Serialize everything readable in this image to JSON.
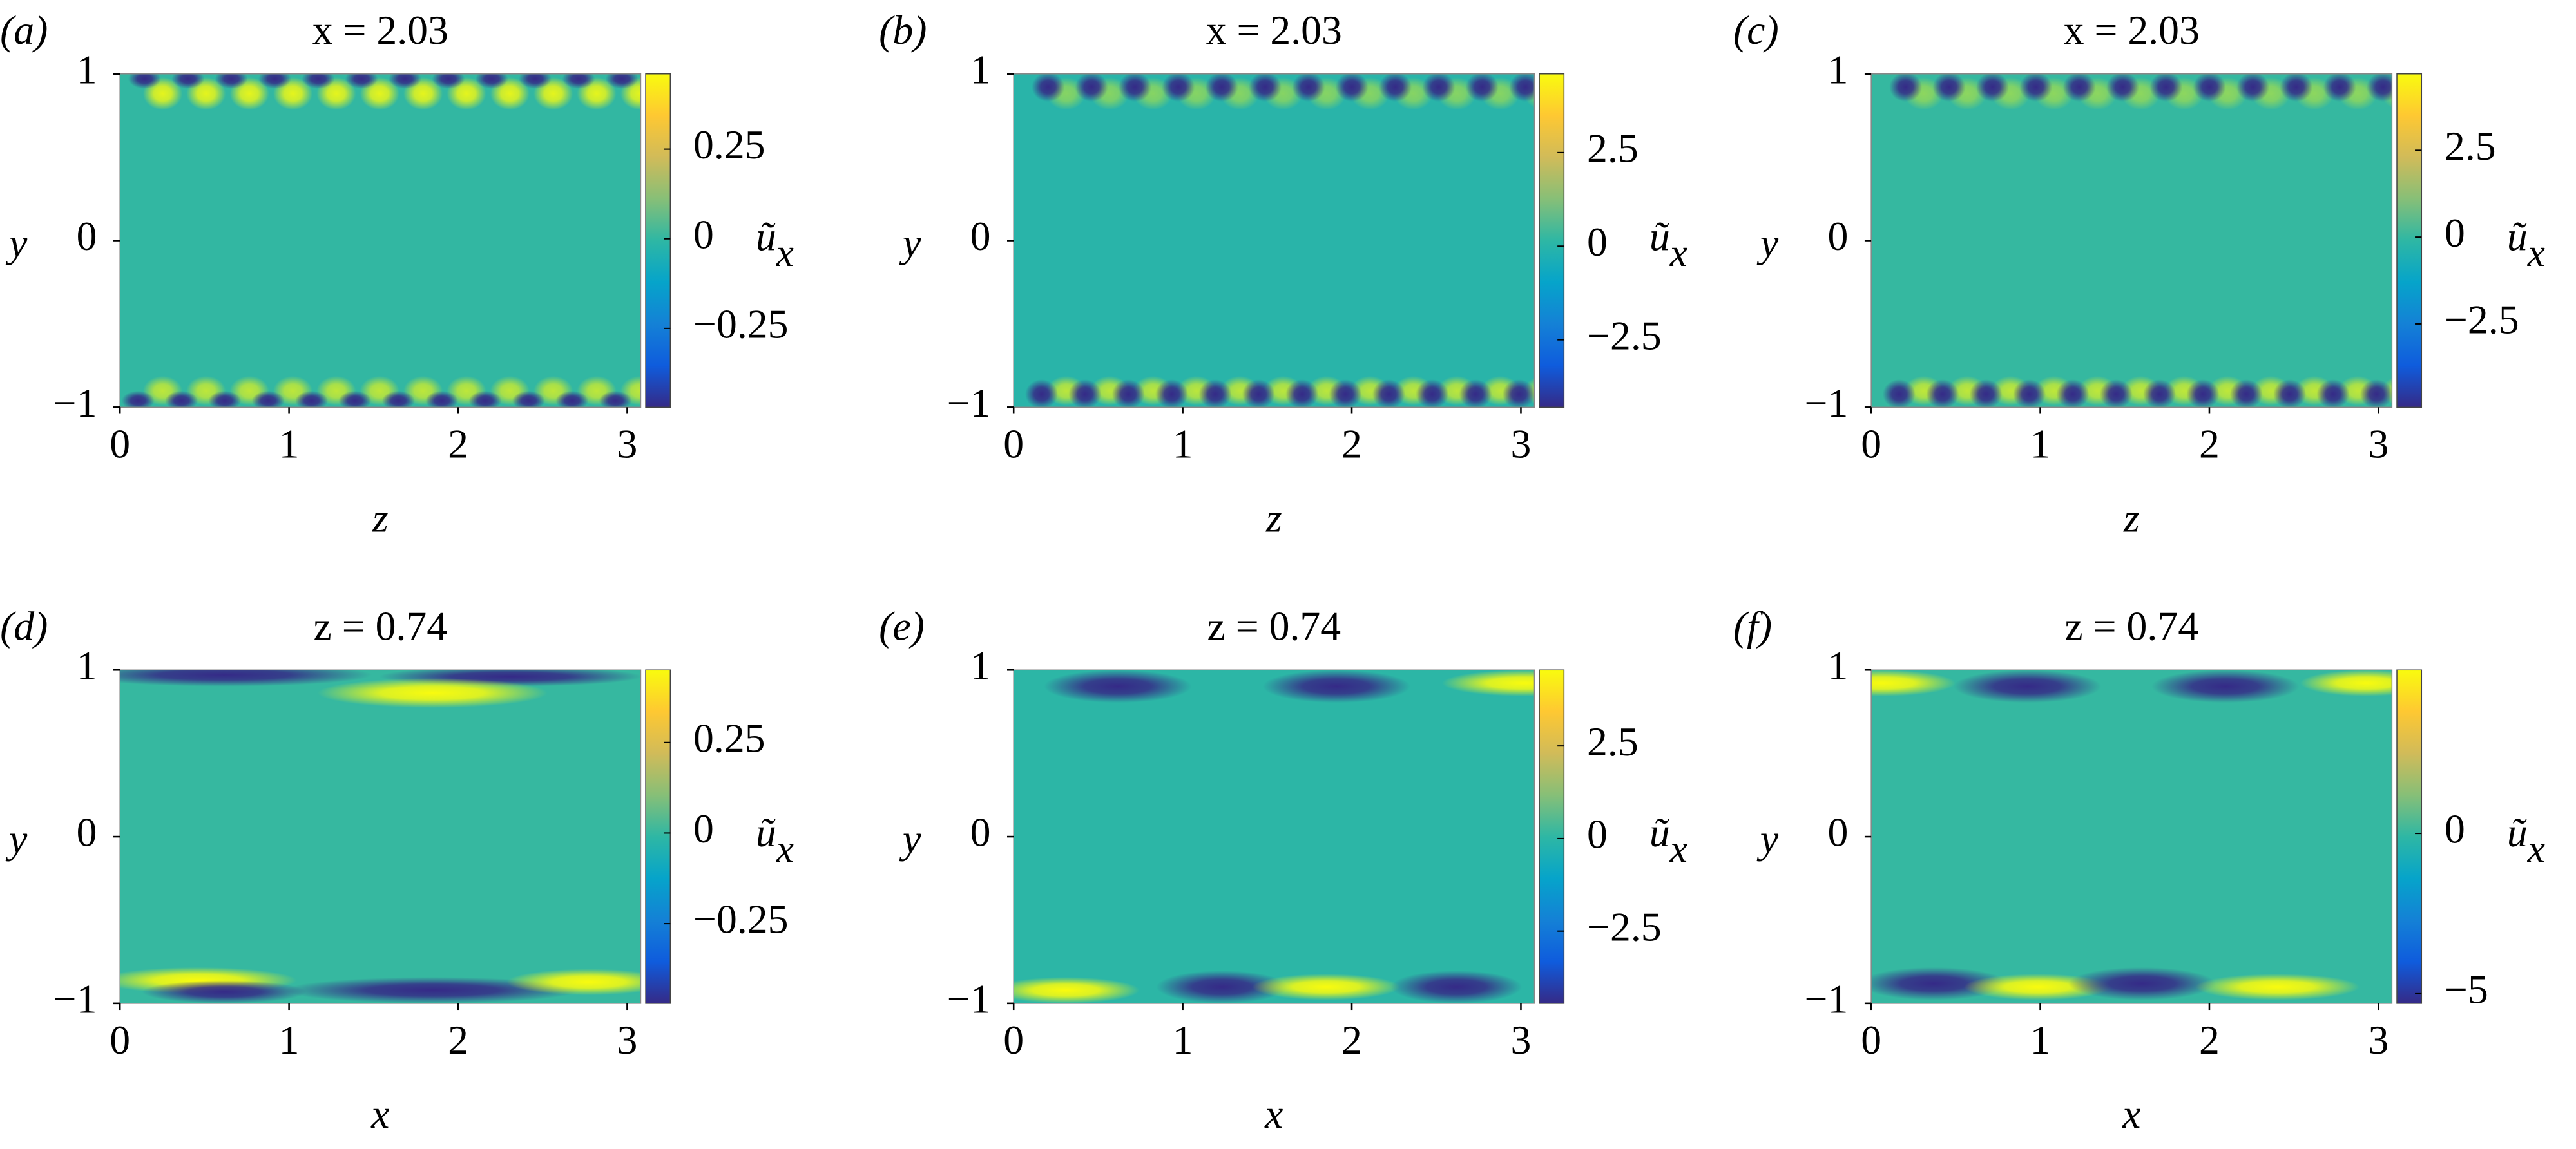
{
  "chart_data": [
    {
      "type": "heatmap",
      "label": "(a)",
      "title": "x = 2.03",
      "xlabel": "z",
      "ylabel": "y",
      "cbar_label": {
        "symbol": "ũ",
        "subscript": "x"
      },
      "xlim": [
        0,
        3.08
      ],
      "ylim": [
        -1,
        1
      ],
      "xticks": [
        0,
        1,
        2,
        3
      ],
      "yticks": [
        {
          "value": -1,
          "label": "−1"
        },
        0,
        1
      ],
      "clim": [
        -0.47,
        0.46
      ],
      "cticks": [
        {
          "value": -0.25,
          "label": "−0.25"
        },
        0,
        0.25
      ],
      "colormap": [
        "#352a87",
        "#0f5cdd",
        "#1481d6",
        "#06a4ca",
        "#2eb7a4",
        "#87bf77",
        "#d1bb59",
        "#fec832",
        "#f9fb0e"
      ]
    },
    {
      "type": "heatmap",
      "label": "(b)",
      "title": "x = 2.03",
      "xlabel": "z",
      "ylabel": "y",
      "cbar_label": {
        "symbol": "ũ",
        "subscript": "x"
      },
      "xlim": [
        0,
        3.08
      ],
      "ylim": [
        -1,
        1
      ],
      "xticks": [
        0,
        1,
        2,
        3
      ],
      "yticks": [
        {
          "value": -1,
          "label": "−1"
        },
        0,
        1
      ],
      "clim": [
        -4.3,
        4.6
      ],
      "cticks": [
        {
          "value": -2.5,
          "label": "−2.5"
        },
        0,
        2.5
      ],
      "colormap": [
        "#352a87",
        "#0f5cdd",
        "#1481d6",
        "#06a4ca",
        "#2eb7a4",
        "#87bf77",
        "#d1bb59",
        "#fec832",
        "#f9fb0e"
      ]
    },
    {
      "type": "heatmap",
      "label": "(c)",
      "title": "x = 2.03",
      "xlabel": "z",
      "ylabel": "y",
      "cbar_label": {
        "symbol": "ũ",
        "subscript": "x"
      },
      "xlim": [
        0,
        3.08
      ],
      "ylim": [
        -1,
        1
      ],
      "xticks": [
        0,
        1,
        2,
        3
      ],
      "yticks": [
        {
          "value": -1,
          "label": "−1"
        },
        0,
        1
      ],
      "clim": [
        -4.9,
        4.7
      ],
      "cticks": [
        {
          "value": -2.5,
          "label": "−2.5"
        },
        0,
        2.5
      ],
      "colormap": [
        "#352a87",
        "#0f5cdd",
        "#1481d6",
        "#06a4ca",
        "#2eb7a4",
        "#87bf77",
        "#d1bb59",
        "#fec832",
        "#f9fb0e"
      ]
    },
    {
      "type": "heatmap",
      "label": "(d)",
      "title": "z = 0.74",
      "xlabel": "x",
      "ylabel": "y",
      "cbar_label": {
        "symbol": "ũ",
        "subscript": "x"
      },
      "xlim": [
        0,
        3.08
      ],
      "ylim": [
        -1,
        1
      ],
      "xticks": [
        0,
        1,
        2,
        3
      ],
      "yticks": [
        {
          "value": -1,
          "label": "−1"
        },
        0,
        1
      ],
      "clim": [
        -0.47,
        0.45
      ],
      "cticks": [
        {
          "value": -0.25,
          "label": "−0.25"
        },
        0,
        0.25
      ],
      "colormap": [
        "#352a87",
        "#0f5cdd",
        "#1481d6",
        "#06a4ca",
        "#2eb7a4",
        "#87bf77",
        "#d1bb59",
        "#fec832",
        "#f9fb0e"
      ]
    },
    {
      "type": "heatmap",
      "label": "(e)",
      "title": "z = 0.74",
      "xlabel": "x",
      "ylabel": "y",
      "cbar_label": {
        "symbol": "ũ",
        "subscript": "x"
      },
      "xlim": [
        0,
        3.08
      ],
      "ylim": [
        -1,
        1
      ],
      "xticks": [
        0,
        1,
        2,
        3
      ],
      "yticks": [
        {
          "value": -1,
          "label": "−1"
        },
        0,
        1
      ],
      "clim": [
        -4.45,
        4.55
      ],
      "cticks": [
        {
          "value": -2.5,
          "label": "−2.5"
        },
        0,
        2.5
      ],
      "colormap": [
        "#352a87",
        "#0f5cdd",
        "#1481d6",
        "#06a4ca",
        "#2eb7a4",
        "#87bf77",
        "#d1bb59",
        "#fec832",
        "#f9fb0e"
      ]
    },
    {
      "type": "heatmap",
      "label": "(f)",
      "title": "z = 0.74",
      "xlabel": "x",
      "ylabel": "y",
      "cbar_label": {
        "symbol": "ũ",
        "subscript": "x"
      },
      "xlim": [
        0,
        3.08
      ],
      "ylim": [
        -1,
        1
      ],
      "xticks": [
        0,
        1,
        2,
        3
      ],
      "yticks": [
        {
          "value": -1,
          "label": "−1"
        },
        0,
        1
      ],
      "clim": [
        -5.3,
        5.1
      ],
      "cticks": [
        {
          "value": -5,
          "label": "−5"
        },
        0
      ],
      "colormap": [
        "#352a87",
        "#0f5cdd",
        "#1481d6",
        "#06a4ca",
        "#2eb7a4",
        "#87bf77",
        "#d1bb59",
        "#fec832",
        "#f9fb0e"
      ]
    }
  ]
}
